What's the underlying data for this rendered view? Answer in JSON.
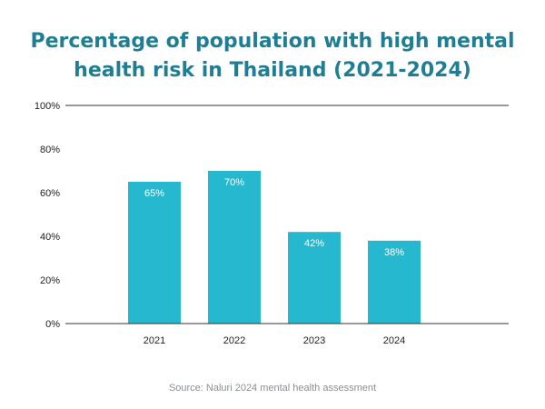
{
  "chart_data": {
    "type": "bar",
    "title": "Percentage of population with high mental\nhealth risk in Thailand (2021-2024)",
    "categories": [
      "2021",
      "2022",
      "2023",
      "2024"
    ],
    "values": [
      65,
      70,
      42,
      38
    ],
    "data_labels": [
      "65%",
      "70%",
      "42%",
      "38%"
    ],
    "ylim": [
      0,
      100
    ],
    "yticks": [
      0,
      20,
      40,
      60,
      80,
      100
    ],
    "ytick_labels": [
      "0%",
      "20%",
      "40%",
      "60%",
      "80%",
      "100%"
    ],
    "xlabel": "",
    "ylabel": "",
    "grid": false,
    "source": "Source: Naluri 2024 mental health assessment"
  },
  "colors": {
    "bar": "#26b8cf",
    "title": "#1f7e93",
    "axis_line": "#333333",
    "tick_text": "#222222",
    "data_label": "#ffffff",
    "source_text": "#8b8f94"
  }
}
